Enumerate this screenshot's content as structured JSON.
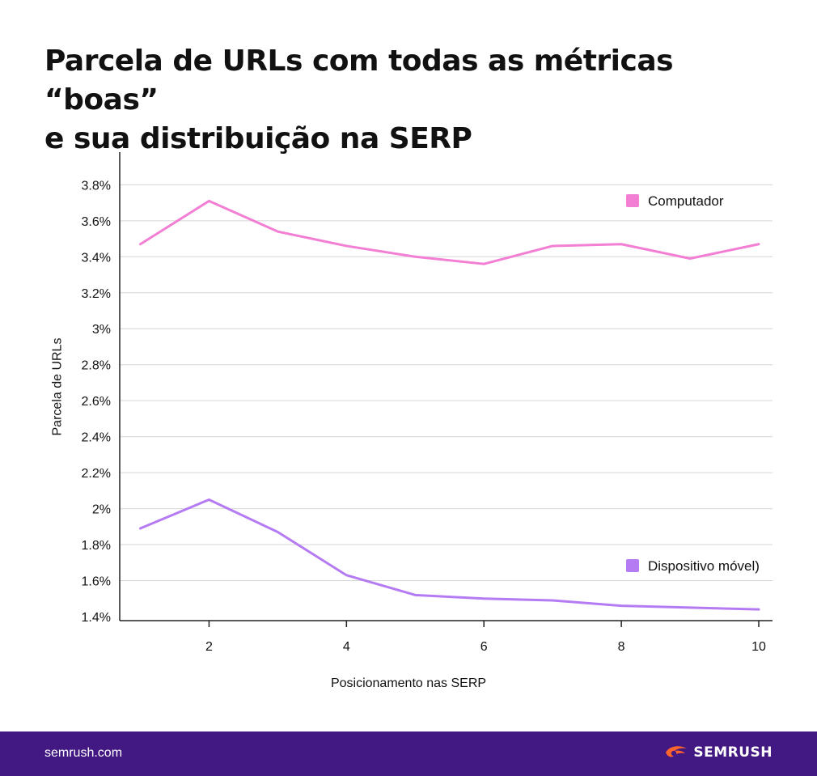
{
  "header": {
    "title_line1": "Parcela de URLs com todas as métricas “boas”",
    "title_line2": "e sua distribuição na SERP"
  },
  "chart_data": {
    "type": "line",
    "xlabel": "Posicionamento nas SERP",
    "ylabel": "Parcela de URLs",
    "x": [
      1,
      2,
      3,
      4,
      5,
      6,
      7,
      8,
      9,
      10
    ],
    "x_ticks": [
      2,
      4,
      6,
      8,
      10
    ],
    "x_tick_labels": [
      "2",
      "4",
      "6",
      "8",
      "10"
    ],
    "xlim": [
      0.7,
      10.2
    ],
    "ylim": [
      1.4,
      3.95
    ],
    "y_ticks": [
      1.4,
      1.6,
      1.8,
      2.0,
      2.2,
      2.4,
      2.6,
      2.8,
      3.0,
      3.2,
      3.4,
      3.6,
      3.8
    ],
    "y_tick_labels": [
      "1.4%",
      "1.6%",
      "1.8%",
      "2%",
      "2.2%",
      "2.4%",
      "2.6%",
      "2.8%",
      "3%",
      "3.2%",
      "3.4%",
      "3.6%",
      "3.8%"
    ],
    "grid": true,
    "series": [
      {
        "name": "Computador",
        "color": "#f27fd3",
        "values": [
          3.47,
          3.71,
          3.54,
          3.46,
          3.4,
          3.36,
          3.46,
          3.47,
          3.39,
          3.47
        ]
      },
      {
        "name": "Dispositivo móvel)",
        "color": "#b57bf3",
        "values": [
          1.89,
          2.05,
          1.87,
          1.63,
          1.52,
          1.5,
          1.49,
          1.46,
          1.45,
          1.44
        ]
      }
    ],
    "legend_placement": "right, beside each line"
  },
  "footer": {
    "site": "semrush.com",
    "brand": "SEMRUSH",
    "background": "#421983",
    "logo_color": "#ff642d"
  }
}
